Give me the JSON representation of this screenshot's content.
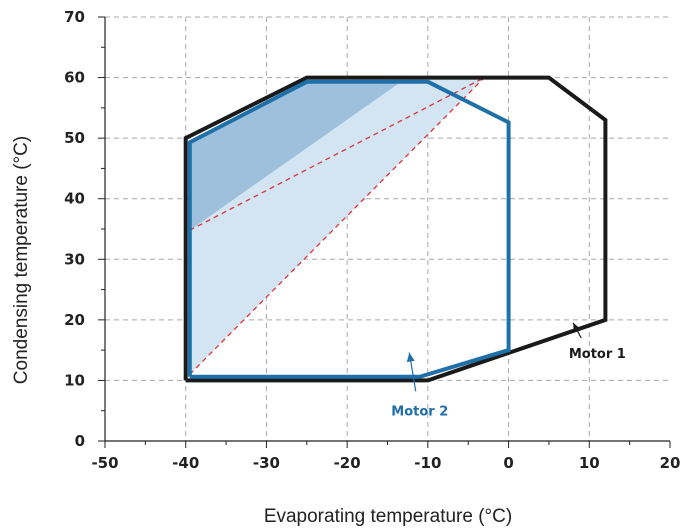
{
  "chart_data": {
    "type": "area",
    "title": "",
    "xlabel": "Evaporating temperature (°C)",
    "ylabel": "Condensing temperature (°C)",
    "xlim": [
      -50,
      20
    ],
    "ylim": [
      0,
      70
    ],
    "x_ticks": [
      -50,
      -40,
      -30,
      -20,
      -10,
      0,
      10,
      20
    ],
    "y_ticks": [
      0,
      10,
      20,
      30,
      40,
      50,
      60,
      70
    ],
    "grid": "on",
    "colors": {
      "motor1": "#1a1a1a",
      "motor2": "#1f6fa8",
      "motor2_label": "#1f6fa8",
      "grid": "#a8a8a8",
      "light_fill": "#d3e5f2",
      "dark_fill": "#9dc0dd",
      "dashed": "#e0333a"
    },
    "envelopes": [
      {
        "name": "Motor 1",
        "points": [
          [
            -40,
            10
          ],
          [
            -10,
            10
          ],
          [
            12,
            20
          ],
          [
            12,
            53
          ],
          [
            5,
            60
          ],
          [
            -25,
            60
          ],
          [
            -40,
            50
          ],
          [
            -40,
            10
          ]
        ]
      },
      {
        "name": "Motor 2",
        "points": [
          [
            -39.5,
            10.6
          ],
          [
            -11,
            10.6
          ],
          [
            0,
            15
          ],
          [
            0,
            52.6
          ],
          [
            -10,
            59.3
          ],
          [
            -25,
            59.3
          ],
          [
            -39.5,
            49.3
          ],
          [
            -39.5,
            10.6
          ]
        ]
      }
    ],
    "shaded_regions": [
      {
        "shade": "light",
        "points": [
          [
            -39.5,
            11
          ],
          [
            -39.5,
            49.3
          ],
          [
            -25,
            59.3
          ],
          [
            -3,
            60
          ]
        ]
      },
      {
        "shade": "dark",
        "points": [
          [
            -39.5,
            34.8
          ],
          [
            -39.5,
            49.3
          ],
          [
            -25,
            59.3
          ],
          [
            -13,
            59.6
          ]
        ]
      }
    ],
    "dashed_lines": [
      [
        [
          -39.5,
          11
        ],
        [
          -3,
          60
        ]
      ],
      [
        [
          -39.5,
          34.8
        ],
        [
          -3,
          60
        ]
      ]
    ],
    "annotations": [
      {
        "text": "Motor 1",
        "color": "#1a1a1a",
        "label_at": [
          11,
          14.5
        ],
        "arrow_from": [
          9,
          17
        ],
        "arrow_to": [
          8,
          19.5
        ]
      },
      {
        "text": "Motor 2",
        "color": "#1f6fa8",
        "label_at": [
          -11,
          5
        ],
        "arrow_from": [
          -11.5,
          8.2
        ],
        "arrow_to": [
          -12.3,
          14.6
        ]
      }
    ]
  }
}
